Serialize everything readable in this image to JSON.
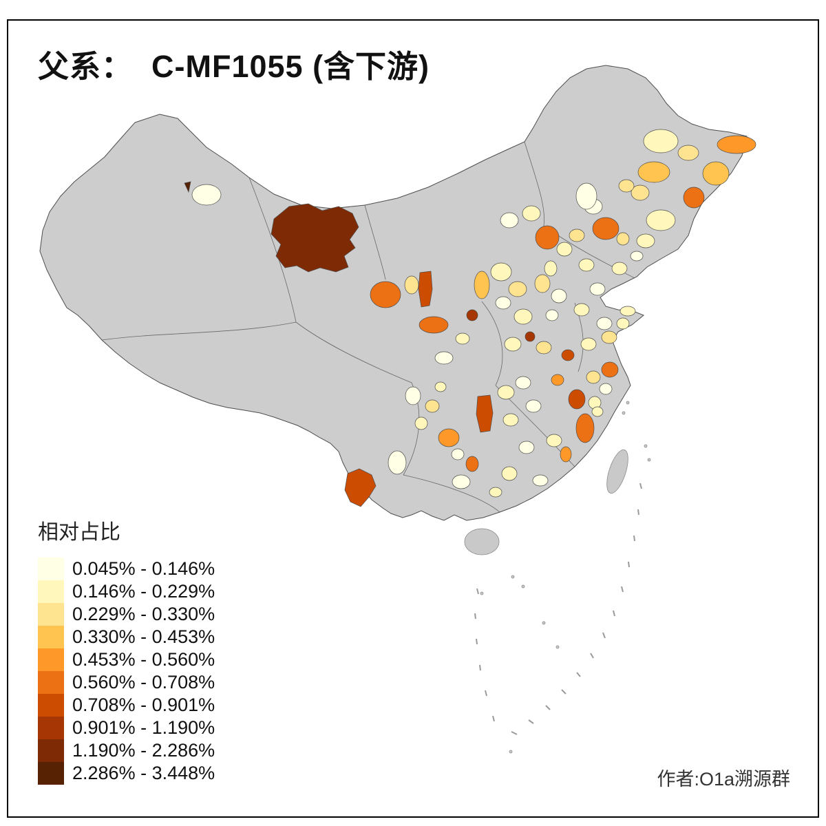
{
  "title": "父系：  C-MF1055 (含下游)",
  "legend": {
    "title": "相对占比",
    "items": [
      {
        "label": "0.045% - 0.146%",
        "color": "#FFFFE5"
      },
      {
        "label": "0.146% - 0.229%",
        "color": "#FFF7BC"
      },
      {
        "label": "0.229% - 0.330%",
        "color": "#FEE391"
      },
      {
        "label": "0.330% - 0.453%",
        "color": "#FEC44F"
      },
      {
        "label": "0.453% - 0.560%",
        "color": "#FE9929"
      },
      {
        "label": "0.560% - 0.708%",
        "color": "#EC7014"
      },
      {
        "label": "0.708% - 0.901%",
        "color": "#CC4C02"
      },
      {
        "label": "0.901% - 1.190%",
        "color": "#A63603"
      },
      {
        "label": "1.190% - 2.286%",
        "color": "#7E2B05"
      },
      {
        "label": "2.286% - 3.448%",
        "color": "#572103"
      }
    ]
  },
  "author": "作者:O1a溯源群",
  "map": {
    "no_data_color": "#CDCDCD",
    "border_color": "#4D4D4D",
    "background": "#FFFFFF"
  },
  "chart_data": {
    "type": "choropleth",
    "region": "China (prefecture level)",
    "title": "父系：  C-MF1055 (含下游)",
    "legend_title": "相对占比",
    "bins": [
      "0.045% - 0.146%",
      "0.146% - 0.229%",
      "0.229% - 0.330%",
      "0.330% - 0.453%",
      "0.453% - 0.560%",
      "0.560% - 0.708%",
      "0.708% - 0.901%",
      "0.901% - 1.190%",
      "1.190% - 2.286%",
      "2.286% - 3.448%"
    ],
    "palette": [
      "#FFFFE5",
      "#FFF7BC",
      "#FEE391",
      "#FEC44F",
      "#FE9929",
      "#EC7014",
      "#CC4C02",
      "#A63603",
      "#7E2B05",
      "#572103"
    ],
    "no_data_color": "#CDCDCD",
    "legend_position": "bottom-left",
    "notes": "Highest-value (darkest) region located in NW China; scattered low-to-mid values across central, eastern and NE China; gray = no data"
  }
}
